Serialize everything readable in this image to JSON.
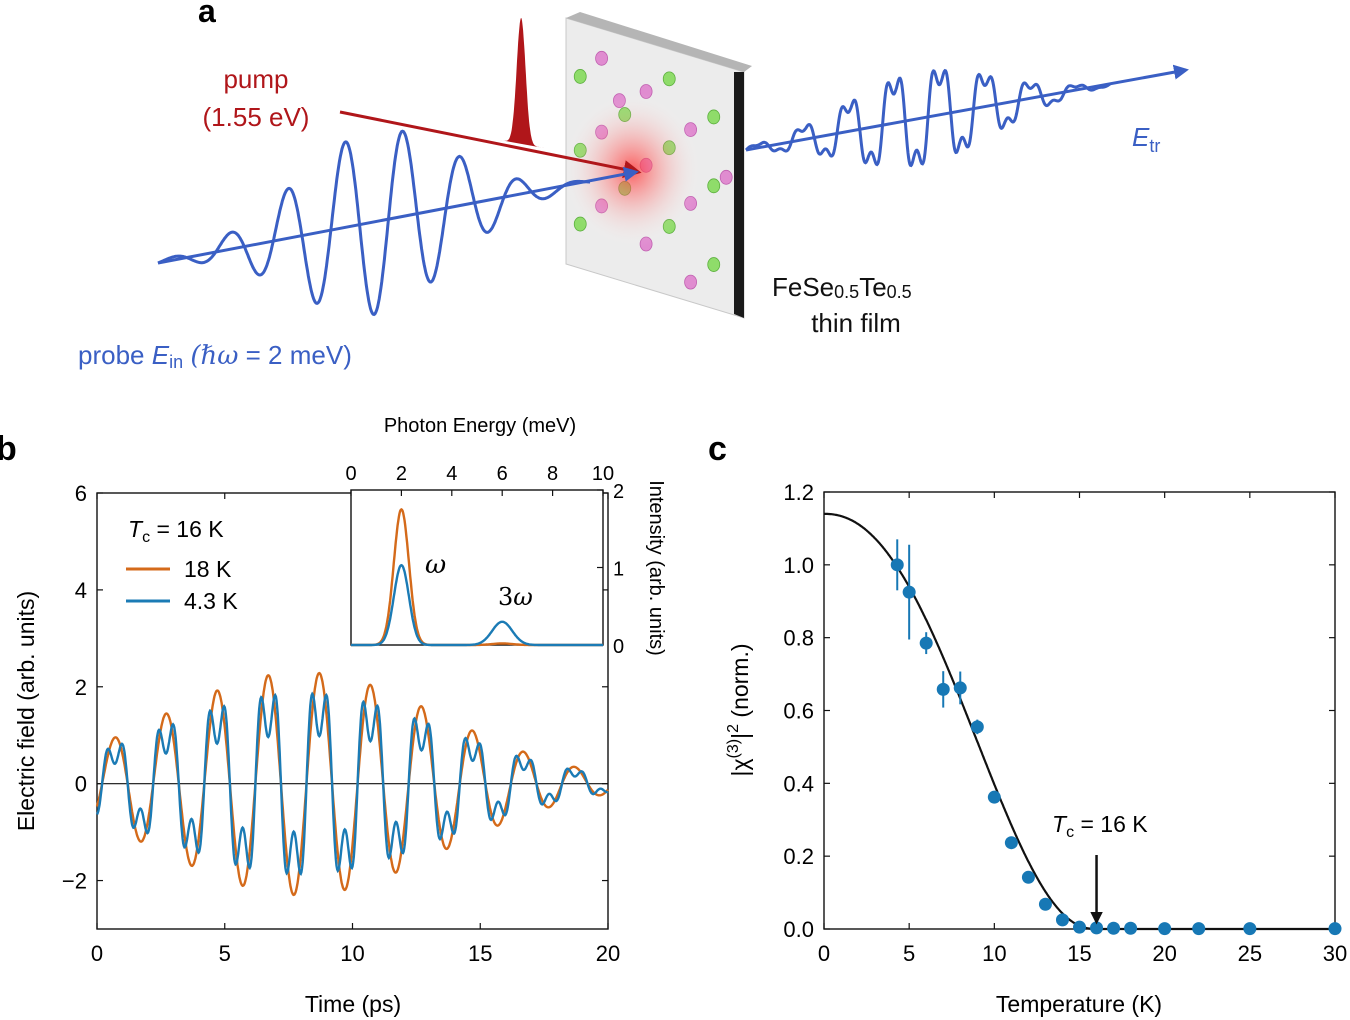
{
  "colors": {
    "orange": "#d46a1a",
    "blue": "#1b7bb5",
    "dot": "#1778b5",
    "probe": "#3a5fc4",
    "pump": "#b0161a",
    "black": "#111111"
  },
  "panel_a": {
    "label": "a",
    "pump_line1": "pump",
    "pump_line2": "(1.55 eV)",
    "probe_prefix": "probe ",
    "probe_field": "E",
    "probe_sub": "in",
    "probe_hbar_omega": "(ℏω",
    "probe_value": " = 2 meV)",
    "tr_field": "E",
    "tr_sub": "tr",
    "sample_name": "FeSe",
    "sample_sub1": "0.5",
    "sample_mid": "Te",
    "sample_sub2": "0.5",
    "sample_line2": "thin film",
    "probe_waveform": {
      "center": 0.5,
      "envelope_width": 0.18,
      "cycles": 7.5,
      "amplitude": 1.0
    },
    "transmitted_waveform": {
      "center": 0.48,
      "envelope_width": 0.2,
      "cycles": 8,
      "third_harmonic_ratio": 0.35
    },
    "pump_pulse": {
      "width": 0.1,
      "amplitude": 1.0
    }
  },
  "panel_b": {
    "label": "b",
    "xlabel": "Time (ps)",
    "ylabel": "Electric field (arb. units)",
    "legend_title_T": "T",
    "legend_title_sub": "c",
    "legend_title_rest": " = 16 K",
    "series": [
      {
        "name": "18 K",
        "color": "#d46a1a"
      },
      {
        "name": "4.3 K",
        "color": "#1b7bb5"
      }
    ],
    "inset": {
      "xlabel": "Photon Energy (meV)",
      "ylabel": "Intensity (arb. units)",
      "label_omega": "ω",
      "label_3": "3",
      "label_3omega_w": "ω"
    }
  },
  "chart_data": [
    {
      "type": "line",
      "title": "",
      "xlabel": "Time (ps)",
      "ylabel": "Electric field (arb. units)",
      "xlim": [
        0,
        20
      ],
      "ylim": [
        -3,
        6
      ],
      "xticks": [
        0,
        5,
        10,
        15,
        20
      ],
      "yticks": [
        -2,
        0,
        2,
        4,
        6
      ],
      "ytick_labels": [
        "−2",
        "0",
        "2",
        "4",
        "6"
      ],
      "series": [
        {
          "name": "18 K",
          "model": {
            "freq_thz": 0.5,
            "envelope_center_ps": 8,
            "envelope_sigma_ps": 5.5,
            "amplitude": 2.3,
            "third_harmonic": 0
          }
        },
        {
          "name": "4.3 K",
          "model": {
            "freq_thz": 0.5,
            "envelope_center_ps": 8,
            "envelope_sigma_ps": 5.5,
            "amplitude": 1.8,
            "third_harmonic": 0.45
          }
        }
      ]
    },
    {
      "type": "line",
      "title": "inset",
      "xlabel": "Photon Energy (meV)",
      "ylabel": "Intensity (arb. units)",
      "xlim": [
        0,
        10
      ],
      "ylim": [
        0,
        2
      ],
      "xticks": [
        0,
        2,
        4,
        6,
        8,
        10
      ],
      "yticks": [
        0,
        1,
        2
      ],
      "series": [
        {
          "name": "18 K",
          "peaks": [
            {
              "center": 2.0,
              "sigma": 0.3,
              "height": 1.75
            },
            {
              "center": 6.0,
              "sigma": 0.4,
              "height": 0.02
            }
          ]
        },
        {
          "name": "4.3 K",
          "peaks": [
            {
              "center": 2.0,
              "sigma": 0.3,
              "height": 1.03
            },
            {
              "center": 6.0,
              "sigma": 0.4,
              "height": 0.3
            }
          ]
        }
      ]
    },
    {
      "type": "scatter",
      "title": "",
      "xlabel": "Temperature (K)",
      "ylabel": "|χ(3)|² (norm.)",
      "xlim": [
        0,
        30
      ],
      "ylim": [
        0,
        1.2
      ],
      "xticks": [
        0,
        5,
        10,
        15,
        20,
        25,
        30
      ],
      "yticks": [
        0.0,
        0.2,
        0.4,
        0.6,
        0.8,
        1.0,
        1.2
      ],
      "ytick_labels": [
        "0.0",
        "0.2",
        "0.4",
        "0.6",
        "0.8",
        "1.0",
        "1.2"
      ],
      "points": [
        {
          "x": 4.3,
          "y": 1.0,
          "err": 0.07
        },
        {
          "x": 5,
          "y": 0.925,
          "err": 0.13
        },
        {
          "x": 6,
          "y": 0.785,
          "err": 0.03
        },
        {
          "x": 7,
          "y": 0.658,
          "err": 0.05
        },
        {
          "x": 8,
          "y": 0.662,
          "err": 0.045
        },
        {
          "x": 9,
          "y": 0.555,
          "err": 0.02
        },
        {
          "x": 10,
          "y": 0.362,
          "err": 0.01
        },
        {
          "x": 11,
          "y": 0.237,
          "err": 0.01
        },
        {
          "x": 12,
          "y": 0.142,
          "err": 0.01
        },
        {
          "x": 13,
          "y": 0.068,
          "err": 0.01
        },
        {
          "x": 14,
          "y": 0.025,
          "err": 0.005
        },
        {
          "x": 15,
          "y": 0.005,
          "err": 0.003
        },
        {
          "x": 16,
          "y": 0.003,
          "err": 0.002
        },
        {
          "x": 17,
          "y": 0.002,
          "err": 0.002
        },
        {
          "x": 18,
          "y": 0.002,
          "err": 0.002
        },
        {
          "x": 20,
          "y": 0.001,
          "err": 0.001
        },
        {
          "x": 22,
          "y": 0.001,
          "err": 0.001
        },
        {
          "x": 25,
          "y": 0.001,
          "err": 0.001
        },
        {
          "x": 30,
          "y": 0.001,
          "err": 0.001
        }
      ],
      "fit": {
        "type": "order_parameter",
        "T_c": 16,
        "y0": 1.14
      },
      "annotation": {
        "text_T": "T",
        "text_sub": "c",
        "text_rest": " = 16 K",
        "arrow_x": 16
      }
    }
  ],
  "panel_c": {
    "label": "c",
    "xlabel": "Temperature (K)",
    "ylabel_pre": "|χ",
    "ylabel_sup": "(3)",
    "ylabel_post": "|",
    "ylabel_sq": "2",
    "ylabel_norm": " (norm.)"
  }
}
